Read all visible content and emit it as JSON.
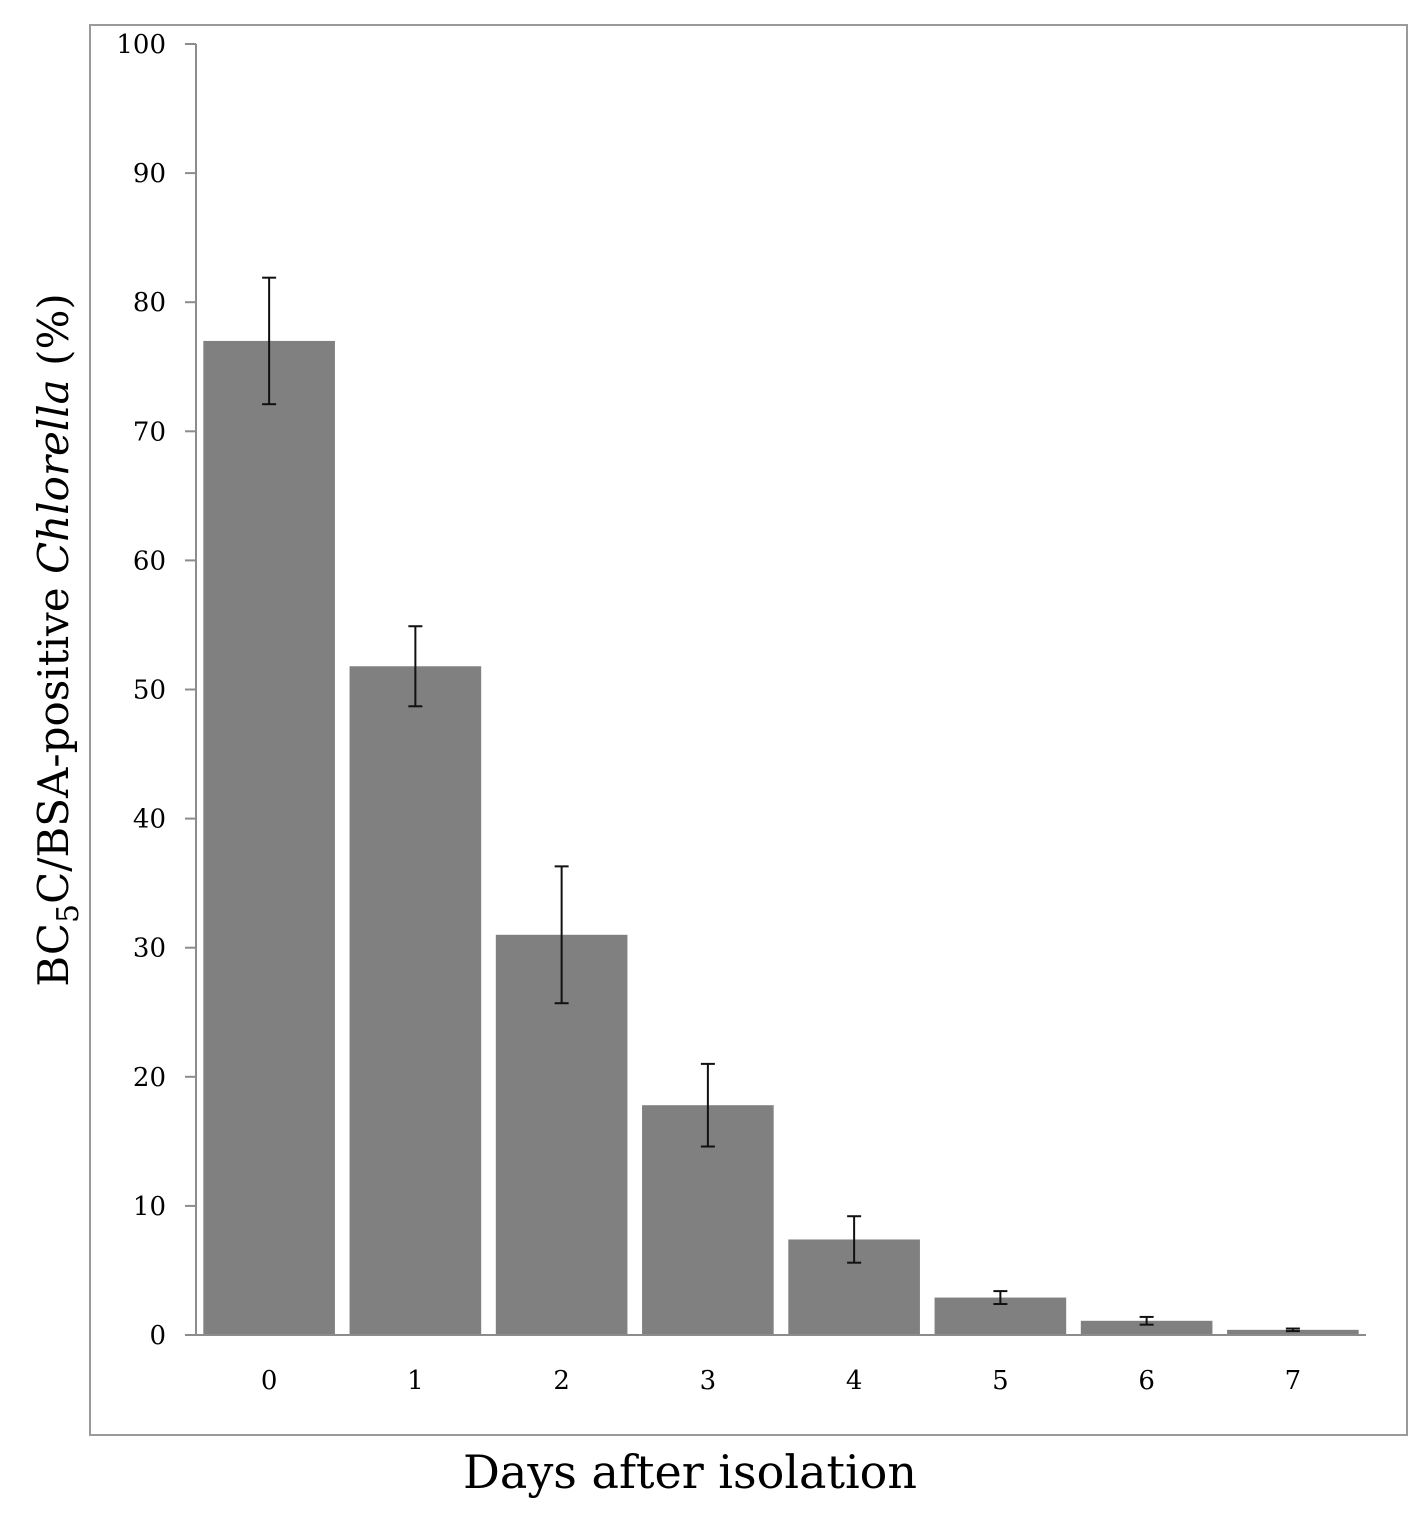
{
  "chart_data": {
    "type": "bar",
    "categories": [
      "0",
      "1",
      "2",
      "3",
      "4",
      "5",
      "6",
      "7"
    ],
    "values": [
      77,
      51.8,
      31,
      17.8,
      7.4,
      2.9,
      1.1,
      0.4
    ],
    "errors": [
      4.9,
      3.1,
      5.3,
      3.2,
      1.8,
      0.5,
      0.3,
      0.1
    ],
    "xlabel": "Days after isolation",
    "ylabel": {
      "part1": "BC",
      "subscript": "5",
      "part2": "C/BSA-positive ",
      "italic": "Chlorella",
      "part3": " (%)"
    },
    "ylim": [
      0,
      100
    ],
    "yticks": [
      0,
      10,
      20,
      30,
      40,
      50,
      60,
      70,
      80,
      90,
      100
    ],
    "grid": false,
    "bar_color": "#808080",
    "error_bar_color": "#111111"
  }
}
